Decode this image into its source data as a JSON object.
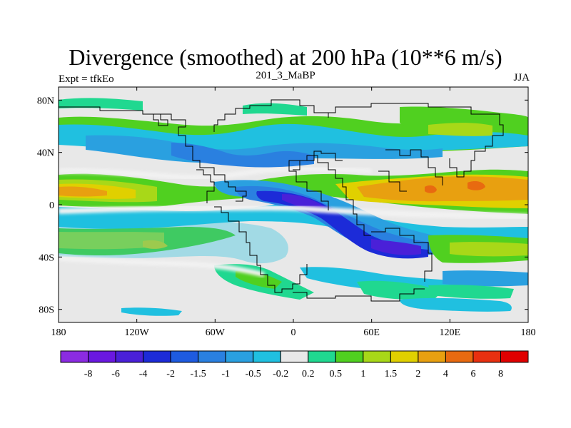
{
  "title": "Divergence (smoothed) at 200 hPa (10**6 m/s)",
  "subtitle_left": "Expt = tfkEo",
  "subtitle_center": "201_3_MaBP",
  "subtitle_right": "JJA",
  "x_ticks": [
    {
      "label": "180",
      "lon": -180
    },
    {
      "label": "120W",
      "lon": -120
    },
    {
      "label": "60W",
      "lon": -60
    },
    {
      "label": "0",
      "lon": 0
    },
    {
      "label": "60E",
      "lon": 60
    },
    {
      "label": "120E",
      "lon": 120
    },
    {
      "label": "180",
      "lon": 180
    }
  ],
  "y_ticks": [
    {
      "label": "80N",
      "lat": 80
    },
    {
      "label": "40N",
      "lat": 40
    },
    {
      "label": "0",
      "lat": 0
    },
    {
      "label": "40S",
      "lat": -40
    },
    {
      "label": "80S",
      "lat": -80
    }
  ],
  "colorbar": {
    "labels": [
      "-8",
      "-6",
      "-4",
      "-2",
      "-1.5",
      "-1",
      "-0.5",
      "-0.2",
      "0.2",
      "0.5",
      "1",
      "1.5",
      "2",
      "4",
      "6",
      "8"
    ],
    "colors": [
      "#8b2be2",
      "#6a18e0",
      "#4a20d8",
      "#1c2bd8",
      "#1e5be0",
      "#2a80e0",
      "#2aa0e0",
      "#20c0e0",
      "#e8e8e8",
      "#20d890",
      "#50d020",
      "#a8d818",
      "#e0d000",
      "#e8a010",
      "#e86a10",
      "#e83010",
      "#e00000"
    ]
  }
}
